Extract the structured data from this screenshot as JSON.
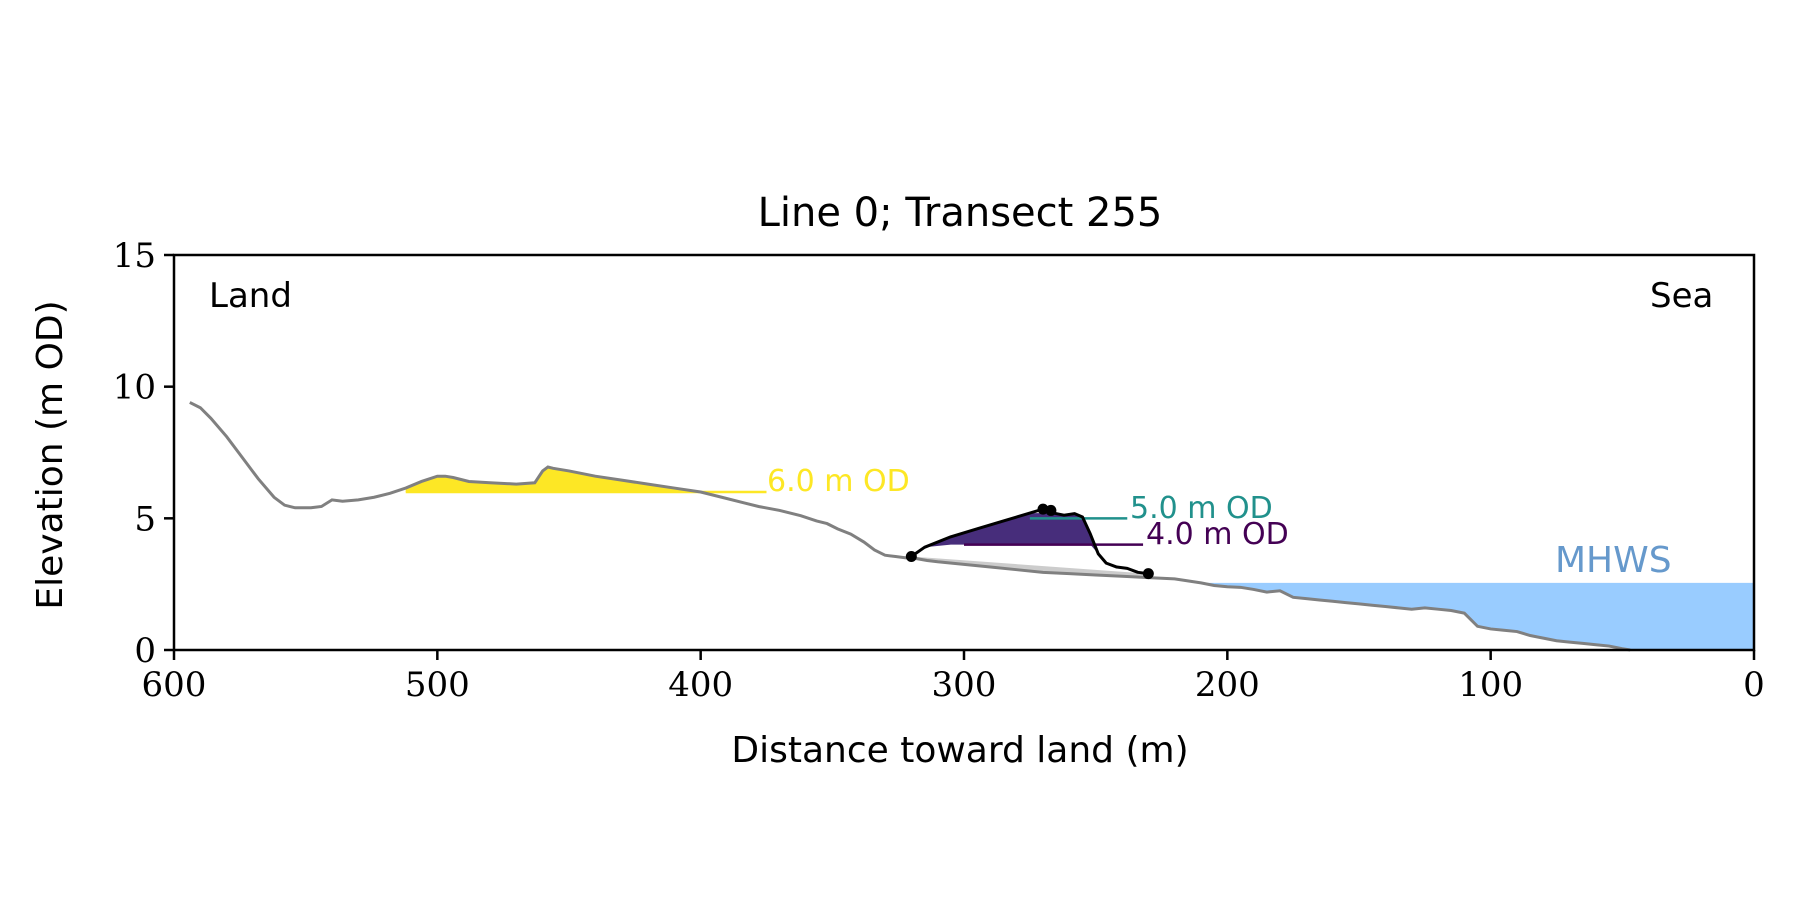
{
  "chart_data": {
    "type": "area",
    "title": "Line 0; Transect 255",
    "xlabel": "Distance toward land (m)",
    "ylabel": "Elevation (m OD)",
    "xlim": [
      600,
      0
    ],
    "ylim": [
      0,
      15
    ],
    "x_ticks": [
      600,
      500,
      400,
      300,
      200,
      100,
      0
    ],
    "y_ticks": [
      0,
      5,
      10,
      15
    ],
    "x_tick_labels": [
      "600",
      "500",
      "400",
      "300",
      "200",
      "100",
      "0"
    ],
    "y_tick_labels": [
      "0",
      "5",
      "10",
      "15"
    ],
    "grid": false,
    "annotations": {
      "land": "Land",
      "sea": "Sea",
      "mhws": "MHWS",
      "level_6": "6.0 m OD",
      "level_5": "5.0 m OD",
      "level_4": "4.0 m OD"
    },
    "colors": {
      "profile": "#808080",
      "dune_outline": "#000000",
      "level_6": "#fde725",
      "level_5": "#21918c",
      "level_4": "#440154",
      "dune_fill": "#472d7b",
      "dune_base_fill": "#cccccc",
      "mhws_fill": "#99ccff",
      "mhws_text": "#6699cc"
    },
    "mhws_level": 2.55,
    "levels": [
      {
        "elevation": 6.0,
        "x_from": 512,
        "x_to": 375
      },
      {
        "elevation": 5.0,
        "x_from": 275,
        "x_to": 238
      },
      {
        "elevation": 4.0,
        "x_from": 300,
        "x_to": 232
      }
    ],
    "profile": {
      "x": [
        594,
        590,
        586,
        580,
        574,
        568,
        562,
        558,
        554,
        548,
        544,
        540,
        536,
        530,
        524,
        518,
        512,
        506,
        500,
        497,
        494,
        488,
        480,
        470,
        463,
        460,
        458,
        456,
        450,
        440,
        430,
        420,
        410,
        400,
        392,
        384,
        378,
        370,
        362,
        356,
        352,
        348,
        343,
        338,
        334,
        330,
        326,
        322,
        318,
        314,
        310,
        300,
        290,
        280,
        270,
        260,
        250,
        240,
        230,
        220,
        210,
        205,
        200,
        195,
        190,
        185,
        180,
        175,
        170,
        165,
        160,
        155,
        150,
        145,
        140,
        135,
        130,
        125,
        120,
        115,
        110,
        105,
        100,
        95,
        90,
        85,
        80,
        75,
        70,
        65,
        60,
        55,
        50,
        47
      ],
      "y": [
        9.4,
        9.2,
        8.8,
        8.1,
        7.3,
        6.5,
        5.8,
        5.5,
        5.4,
        5.4,
        5.45,
        5.7,
        5.65,
        5.7,
        5.8,
        5.95,
        6.15,
        6.4,
        6.6,
        6.6,
        6.55,
        6.4,
        6.35,
        6.3,
        6.35,
        6.8,
        6.95,
        6.9,
        6.8,
        6.6,
        6.45,
        6.3,
        6.15,
        6.0,
        5.8,
        5.6,
        5.45,
        5.3,
        5.1,
        4.9,
        4.8,
        4.6,
        4.4,
        4.1,
        3.8,
        3.6,
        3.55,
        3.5,
        3.47,
        3.4,
        3.35,
        3.25,
        3.15,
        3.05,
        2.95,
        2.9,
        2.85,
        2.8,
        2.75,
        2.7,
        2.55,
        2.45,
        2.4,
        2.38,
        2.3,
        2.2,
        2.25,
        2.0,
        1.95,
        1.9,
        1.85,
        1.8,
        1.75,
        1.7,
        1.65,
        1.6,
        1.55,
        1.6,
        1.55,
        1.5,
        1.4,
        0.9,
        0.8,
        0.75,
        0.7,
        0.55,
        0.45,
        0.35,
        0.3,
        0.25,
        0.2,
        0.15,
        0.05,
        0.0
      ]
    },
    "dune_crest": {
      "x": [
        320,
        315,
        305,
        295,
        285,
        275,
        270,
        266,
        262,
        258,
        255,
        252,
        249,
        246,
        242,
        238,
        234,
        230
      ],
      "y": [
        3.55,
        3.9,
        4.3,
        4.6,
        4.9,
        5.2,
        5.35,
        5.2,
        5.12,
        5.18,
        5.05,
        4.4,
        3.65,
        3.3,
        3.15,
        3.1,
        2.95,
        2.9
      ]
    },
    "dune_points": [
      {
        "x": 320,
        "y": 3.55
      },
      {
        "x": 270,
        "y": 5.35
      },
      {
        "x": 267,
        "y": 5.3
      },
      {
        "x": 230,
        "y": 2.9
      }
    ]
  }
}
